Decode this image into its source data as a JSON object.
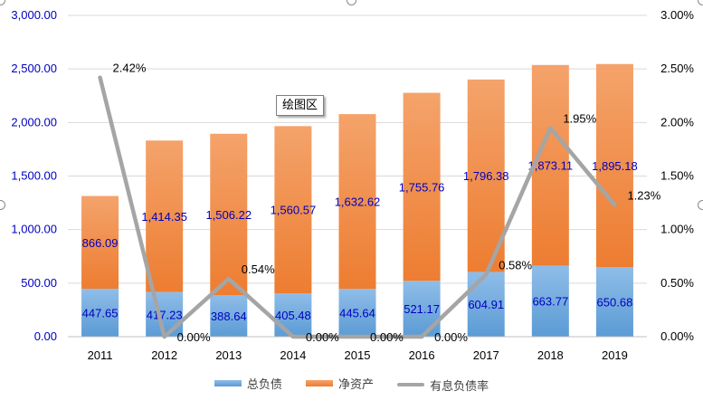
{
  "chart_data": {
    "type": "bar",
    "stacked": true,
    "categories": [
      "2011",
      "2012",
      "2013",
      "2014",
      "2015",
      "2016",
      "2017",
      "2018",
      "2019"
    ],
    "series": [
      {
        "name": "总负债",
        "axis": "left",
        "values": [
          447.65,
          417.23,
          388.64,
          405.48,
          445.64,
          521.17,
          604.91,
          663.77,
          650.68
        ],
        "labels": [
          "447.65",
          "417.23",
          "388.64",
          "405.48",
          "445.64",
          "521.17",
          "604.91",
          "663.77",
          "650.68"
        ]
      },
      {
        "name": "净资产",
        "axis": "left",
        "values": [
          866.09,
          1414.35,
          1506.22,
          1560.57,
          1632.62,
          1755.76,
          1796.38,
          1873.11,
          1895.18
        ],
        "labels": [
          "866.09",
          "1,414.35",
          "1,506.22",
          "1,560.57",
          "1,632.62",
          "1,755.76",
          "1,796.38",
          "1,873.11",
          "1,895.18"
        ]
      },
      {
        "name": "有息负债率",
        "type": "line",
        "axis": "right",
        "values": [
          2.42,
          0.0,
          0.54,
          0.0,
          0.0,
          0.0,
          0.58,
          1.95,
          1.23
        ],
        "labels": [
          "2.42%",
          "0.00%",
          "0.54%",
          "0.00%",
          "0.00%",
          "0.00%",
          "0.58%",
          "1.95%",
          "1.23%"
        ]
      }
    ],
    "y_left": {
      "range": [
        0,
        3000
      ],
      "ticks": [
        0,
        500,
        1000,
        1500,
        2000,
        2500,
        3000
      ],
      "tick_labels": [
        "0.00",
        "500.00",
        "1,000.00",
        "1,500.00",
        "2,000.00",
        "2,500.00",
        "3,000.00"
      ]
    },
    "y_right": {
      "range": [
        0,
        3
      ],
      "ticks": [
        0,
        0.5,
        1,
        1.5,
        2,
        2.5,
        3
      ],
      "tick_labels": [
        "0.00%",
        "0.50%",
        "1.00%",
        "1.50%",
        "2.00%",
        "2.50%",
        "3.00%"
      ]
    },
    "grid": true,
    "legend_position": "bottom",
    "title": "",
    "xlabel": "",
    "ylabel": ""
  },
  "tooltip": {
    "label": "绘图区"
  },
  "colors": {
    "liabilities": "#5b9bd5",
    "liabilities_light": "#8fbde8",
    "net_assets": "#ed7d31",
    "net_assets_light": "#f4a36b",
    "ratio_line": "#a5a5a5",
    "grid": "#d9d9d9",
    "left_tick_text": "#0000c0",
    "right_tick_text": "#000000",
    "bar_label_text": "#0000c0",
    "line_label_text": "#000000"
  }
}
